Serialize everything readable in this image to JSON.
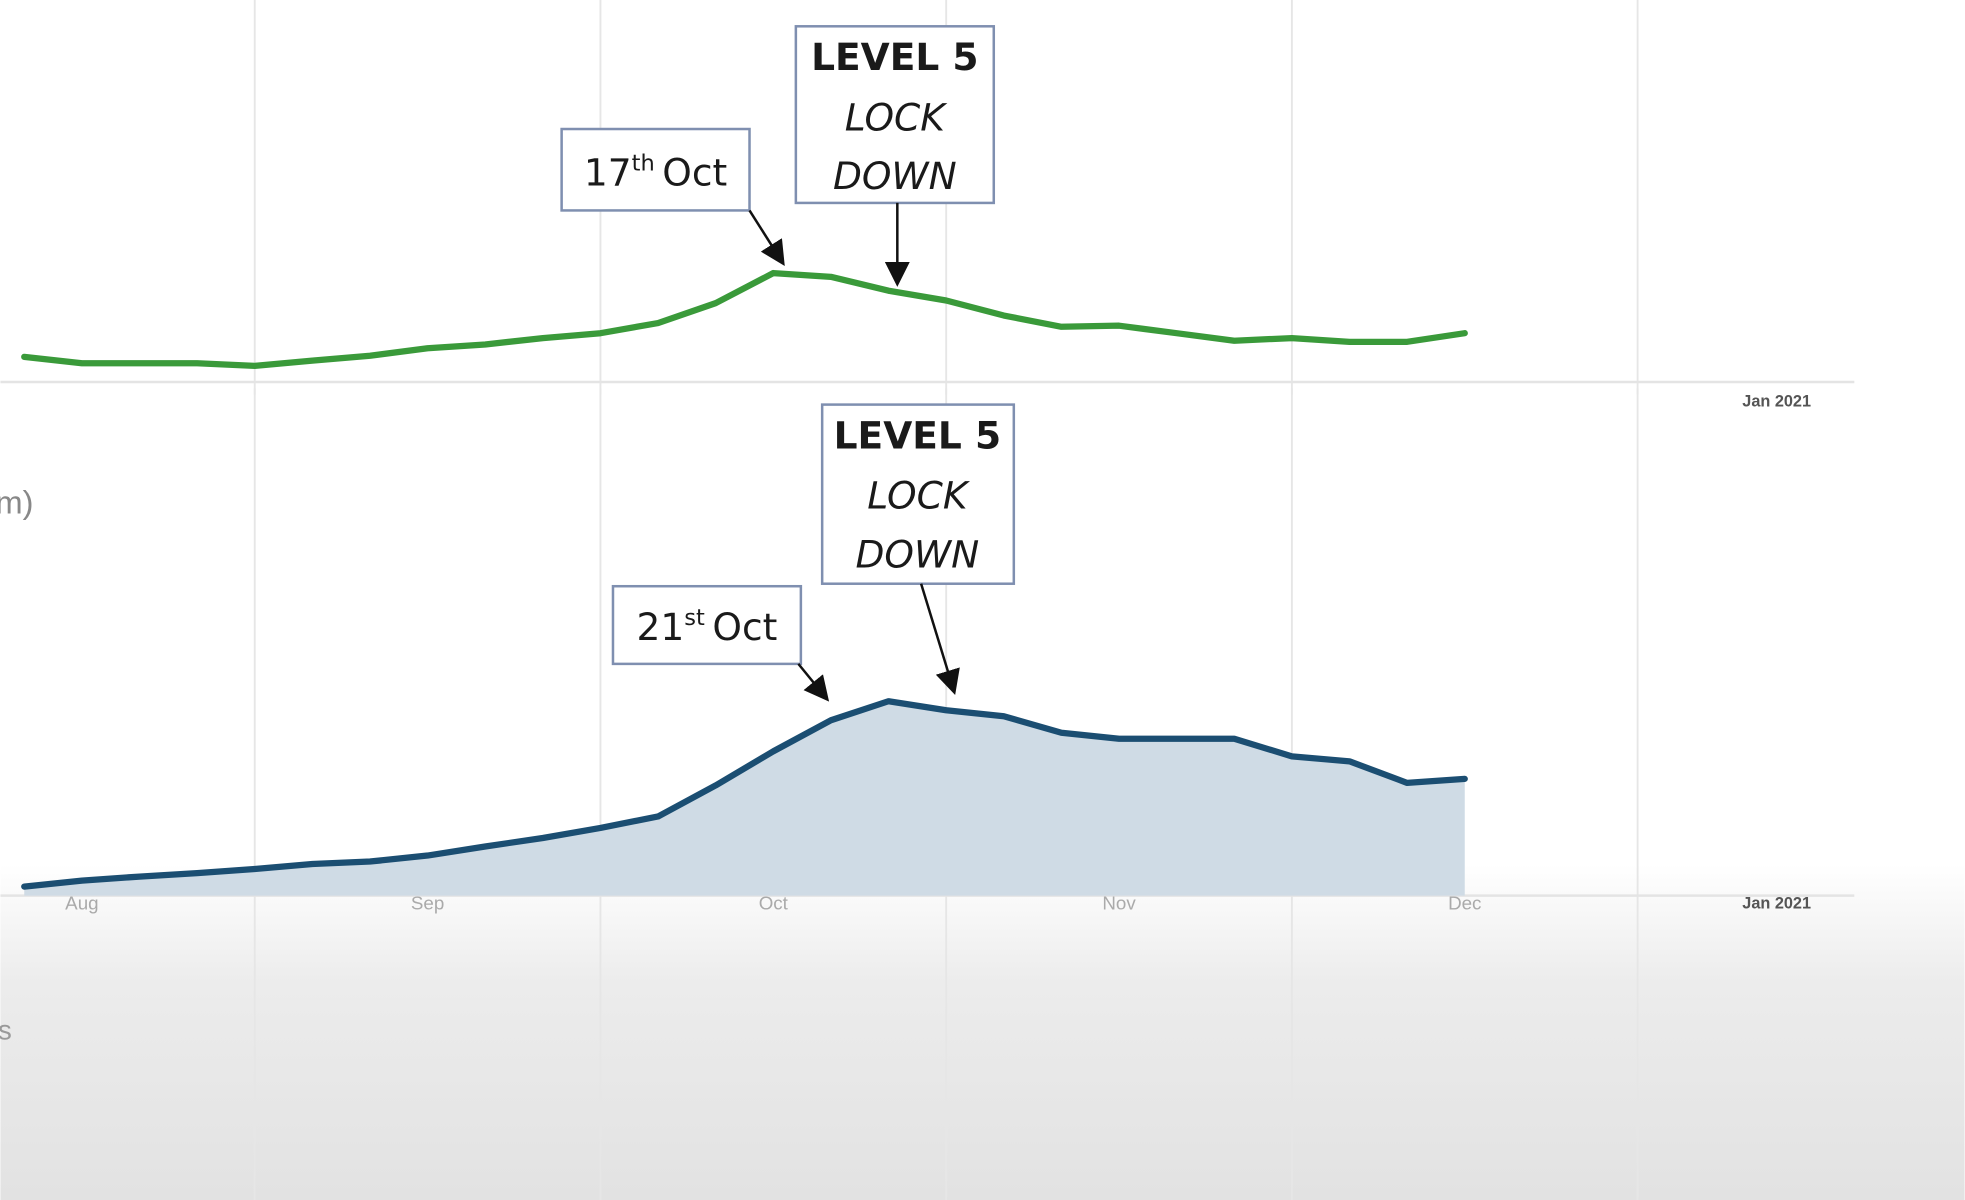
{
  "chart_data": [
    {
      "type": "line",
      "color": "#3a9a3a",
      "categories": [
        null,
        null,
        null,
        null,
        null,
        null,
        null,
        null,
        null,
        null,
        null,
        null,
        null,
        null,
        null,
        null,
        null,
        null,
        null,
        null,
        null,
        null,
        null,
        null,
        null,
        null,
        null,
        null,
        null,
        null,
        null,
        "Jan 2021"
      ],
      "values": [
        6.7,
        5,
        5,
        5,
        4.3,
        5.7,
        7,
        9,
        10,
        11.7,
        13,
        15.7,
        21,
        29,
        28,
        24.3,
        21.7,
        17.7,
        14.7,
        15,
        13,
        11,
        11.7,
        10.7,
        10.7,
        13,
        null,
        null,
        null,
        null,
        null,
        null
      ],
      "ylim": [
        0,
        100
      ],
      "annotations": [
        {
          "number": "17",
          "suffix": "th",
          "text": "Oct"
        },
        {
          "lines": [
            "LEVEL 5",
            "LOCK",
            "DOWN"
          ]
        }
      ]
    },
    {
      "type": "area",
      "color": "#1b4e72",
      "fill": "#cfdbe5",
      "ylabel": "m)",
      "categories": [
        null,
        "Aug",
        null,
        null,
        null,
        null,
        null,
        "Sep",
        null,
        null,
        null,
        null,
        null,
        "Oct",
        null,
        null,
        null,
        null,
        null,
        "Nov",
        null,
        null,
        null,
        null,
        null,
        "Dec",
        null,
        null,
        null,
        null,
        null,
        "Jan 2021"
      ],
      "values": [
        1.8,
        3,
        3.8,
        4.5,
        5.3,
        6.3,
        6.8,
        8,
        9.8,
        11.5,
        13.5,
        15.8,
        22,
        28.8,
        35,
        38.8,
        37,
        35.8,
        32.5,
        31.3,
        31.3,
        31.3,
        27.8,
        26.8,
        22.5,
        23.3,
        null,
        null,
        null,
        null,
        null,
        null
      ],
      "ylim": [
        0,
        100
      ],
      "annotations": [
        {
          "number": "21",
          "suffix": "st",
          "text": "Oct"
        },
        {
          "lines": [
            "LEVEL 5",
            "LOCK",
            "DOWN"
          ]
        }
      ]
    }
  ],
  "partial_text": "s"
}
